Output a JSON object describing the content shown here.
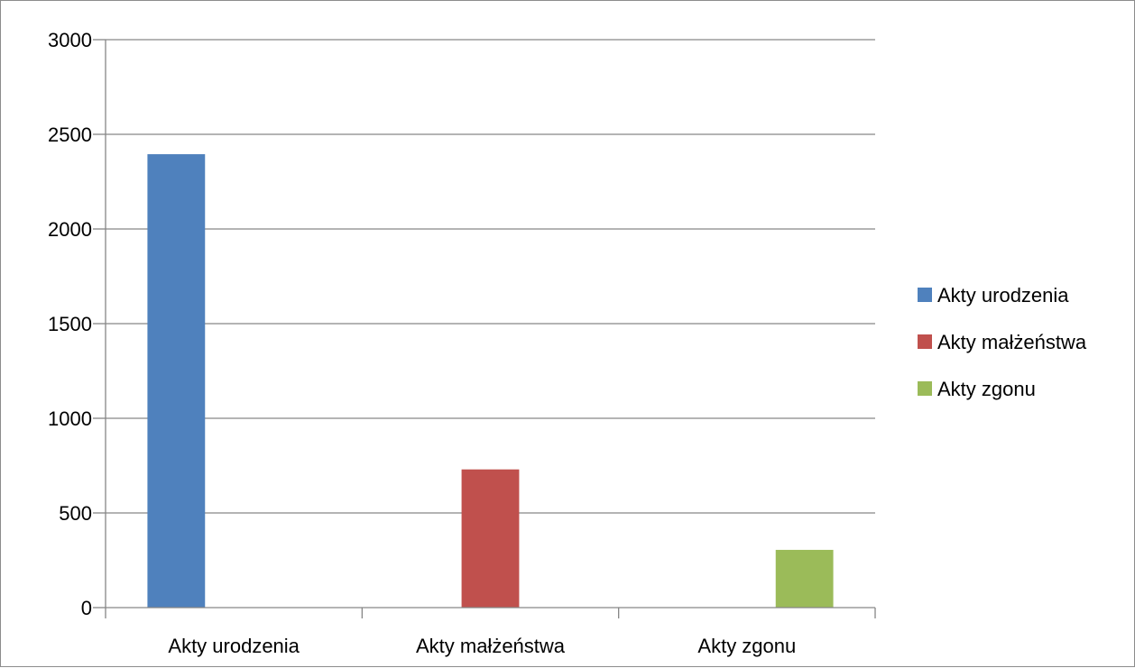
{
  "chart_data": {
    "type": "bar",
    "title": "",
    "xlabel": "",
    "ylabel": "",
    "categories": [
      "Akty urodzenia",
      "Akty małżeństwa",
      "Akty zgonu"
    ],
    "series": [
      {
        "name": "Akty urodzenia",
        "color": "#4F81BD",
        "values": [
          2395,
          0,
          0
        ]
      },
      {
        "name": "Akty małżeństwa",
        "color": "#C0504D",
        "values": [
          0,
          730,
          0
        ]
      },
      {
        "name": "Akty zgonu",
        "color": "#9BBB59",
        "values": [
          0,
          0,
          305
        ]
      }
    ],
    "ylim": [
      0,
      3000
    ],
    "yticks": [
      0,
      500,
      1000,
      1500,
      2000,
      2500,
      3000
    ],
    "grid": "horizontal",
    "legend_position": "right"
  }
}
